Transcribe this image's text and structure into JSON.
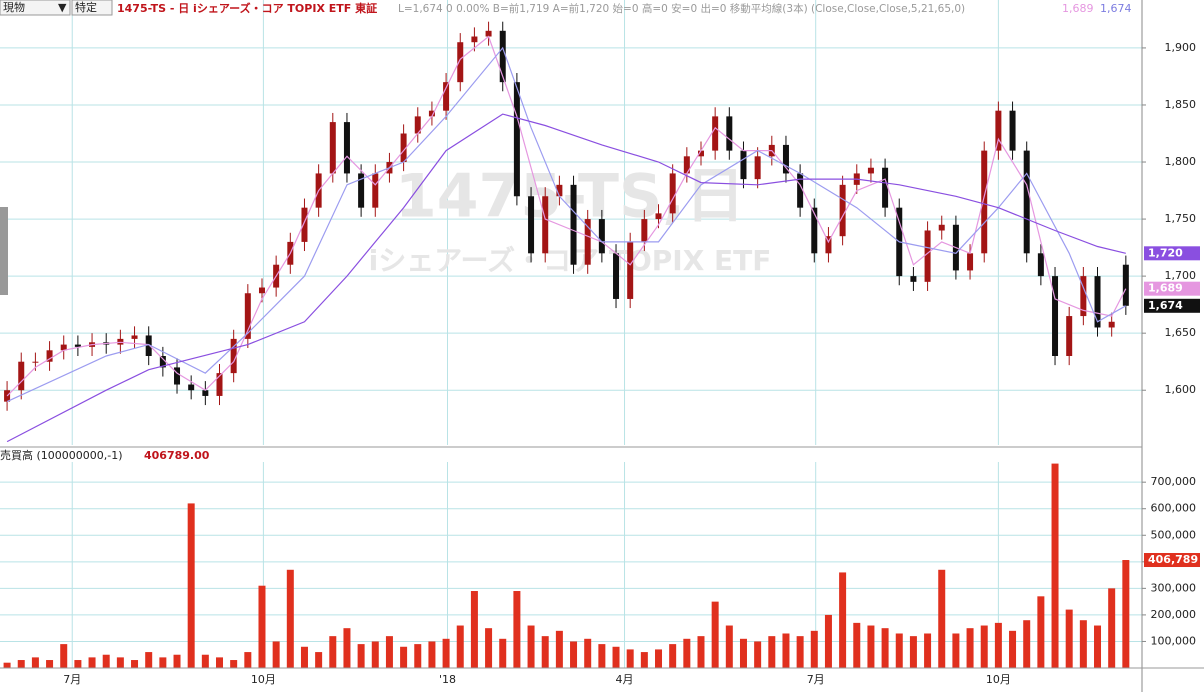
{
  "toolbar": {
    "market": "現物",
    "account": "特定"
  },
  "chart_data": [
    {
      "type": "candlestick",
      "title": "1475-TS - 日 iシェアーズ・コア TOPIX ETF 東証",
      "info": "L=1,674 0 0.00% B=前1,719 A=前1,720 始=0 高=0 安=0 出=0 移動平均線(3本) (Close,Close,Close,5,21,65,0)",
      "watermark": [
        "1475-TS,日",
        "iシェアーズ・コア TOPIX ETF"
      ],
      "open": [
        1590,
        1600,
        1625,
        1625,
        1635,
        1640,
        1638,
        1642,
        1640,
        1645,
        1648,
        1630,
        1620,
        1605,
        1600,
        1595,
        1615,
        1645,
        1685,
        1690,
        1710,
        1730,
        1760,
        1790,
        1835,
        1790,
        1760,
        1790,
        1800,
        1825,
        1840,
        1845,
        1870,
        1905,
        1910,
        1915,
        1870,
        1770,
        1720,
        1770,
        1780,
        1710,
        1750,
        1720,
        1680,
        1730,
        1750,
        1755,
        1790,
        1805,
        1810,
        1840,
        1810,
        1785,
        1805,
        1815,
        1790,
        1760,
        1720,
        1735,
        1780,
        1790,
        1795,
        1760,
        1700,
        1695,
        1740,
        1745,
        1705,
        1720,
        1810,
        1845,
        1810,
        1720,
        1700,
        1630,
        1665,
        1700,
        1655,
        1710
      ],
      "high": [
        1608,
        1633,
        1633,
        1643,
        1648,
        1648,
        1650,
        1650,
        1653,
        1656,
        1656,
        1638,
        1628,
        1613,
        1608,
        1623,
        1653,
        1693,
        1698,
        1718,
        1738,
        1768,
        1798,
        1843,
        1843,
        1798,
        1798,
        1808,
        1833,
        1848,
        1853,
        1878,
        1913,
        1918,
        1923,
        1923,
        1878,
        1778,
        1778,
        1788,
        1788,
        1758,
        1758,
        1728,
        1738,
        1758,
        1763,
        1798,
        1813,
        1818,
        1848,
        1848,
        1818,
        1813,
        1823,
        1823,
        1798,
        1768,
        1743,
        1788,
        1798,
        1803,
        1803,
        1768,
        1708,
        1748,
        1753,
        1753,
        1728,
        1818,
        1853,
        1853,
        1818,
        1728,
        1708,
        1673,
        1708,
        1708,
        1668,
        1718
      ],
      "low": [
        1582,
        1592,
        1617,
        1617,
        1627,
        1630,
        1630,
        1632,
        1632,
        1637,
        1622,
        1612,
        1597,
        1592,
        1587,
        1587,
        1607,
        1637,
        1677,
        1682,
        1702,
        1722,
        1752,
        1782,
        1782,
        1752,
        1752,
        1782,
        1792,
        1817,
        1832,
        1837,
        1862,
        1897,
        1902,
        1862,
        1762,
        1712,
        1712,
        1762,
        1702,
        1702,
        1712,
        1672,
        1672,
        1722,
        1742,
        1747,
        1782,
        1797,
        1802,
        1802,
        1777,
        1777,
        1797,
        1782,
        1752,
        1712,
        1712,
        1727,
        1772,
        1782,
        1752,
        1692,
        1687,
        1687,
        1732,
        1697,
        1697,
        1712,
        1802,
        1802,
        1712,
        1692,
        1622,
        1622,
        1657,
        1647,
        1647,
        1666
      ],
      "close": [
        1600,
        1625,
        1625,
        1635,
        1640,
        1638,
        1642,
        1640,
        1645,
        1648,
        1630,
        1620,
        1605,
        1600,
        1595,
        1615,
        1645,
        1685,
        1690,
        1710,
        1730,
        1760,
        1790,
        1835,
        1790,
        1760,
        1790,
        1800,
        1825,
        1840,
        1845,
        1870,
        1905,
        1910,
        1915,
        1870,
        1770,
        1720,
        1770,
        1780,
        1710,
        1750,
        1720,
        1680,
        1730,
        1750,
        1755,
        1790,
        1805,
        1810,
        1840,
        1810,
        1785,
        1805,
        1815,
        1790,
        1760,
        1720,
        1735,
        1780,
        1790,
        1795,
        1760,
        1700,
        1695,
        1740,
        1745,
        1705,
        1720,
        1810,
        1845,
        1810,
        1720,
        1700,
        1630,
        1665,
        1700,
        1655,
        1660,
        1674
      ],
      "close_label": {
        "value": 1674,
        "label": "1,674"
      },
      "up_color": "#a31515",
      "down_color": "#111111",
      "lines": [
        {
          "color": "#e597e0",
          "last": {
            "value": 1689,
            "label": "1,689"
          },
          "x": [
            0,
            2,
            4,
            6,
            8,
            10,
            12,
            14,
            16,
            18,
            20,
            22,
            24,
            26,
            28,
            30,
            32,
            34,
            36,
            38,
            40,
            42,
            44,
            46,
            48,
            50,
            52,
            54,
            56,
            58,
            60,
            62,
            64,
            66,
            68,
            70,
            72,
            74,
            76,
            78,
            79
          ],
          "values": [
            1595,
            1620,
            1635,
            1640,
            1642,
            1640,
            1615,
            1600,
            1625,
            1680,
            1720,
            1775,
            1805,
            1780,
            1810,
            1840,
            1890,
            1910,
            1840,
            1750,
            1740,
            1730,
            1710,
            1745,
            1790,
            1830,
            1810,
            1810,
            1780,
            1730,
            1775,
            1785,
            1710,
            1730,
            1720,
            1820,
            1780,
            1680,
            1670,
            1665,
            1689
          ]
        },
        {
          "color": "#9c9cf0",
          "last": {
            "value": 1674,
            "label": "1,674"
          },
          "x": [
            0,
            7,
            10,
            14,
            17,
            21,
            24,
            28,
            31,
            35,
            37,
            39,
            42,
            46,
            49,
            53,
            56,
            60,
            63,
            67,
            70,
            72,
            75,
            77,
            79
          ],
          "values": [
            1590,
            1630,
            1640,
            1615,
            1650,
            1700,
            1780,
            1800,
            1840,
            1900,
            1830,
            1770,
            1730,
            1730,
            1780,
            1810,
            1790,
            1760,
            1730,
            1720,
            1760,
            1790,
            1720,
            1660,
            1674
          ]
        },
        {
          "color": "#8a4fe0",
          "last": {
            "value": 1720,
            "label": "1,720"
          },
          "x": [
            0,
            7,
            10,
            17,
            21,
            24,
            28,
            31,
            35,
            38,
            42,
            46,
            49,
            53,
            56,
            60,
            63,
            67,
            70,
            74,
            77,
            79
          ],
          "values": [
            1555,
            1600,
            1618,
            1640,
            1660,
            1700,
            1760,
            1810,
            1842,
            1832,
            1815,
            1800,
            1782,
            1780,
            1785,
            1785,
            1780,
            1770,
            1760,
            1740,
            1726,
            1720
          ]
        }
      ],
      "xlim": [
        -0.5,
        80
      ],
      "ylim": [
        1552,
        1942
      ],
      "yticks": [
        {
          "value": 1600,
          "label": "1,600"
        },
        {
          "value": 1650,
          "label": "1,650"
        },
        {
          "value": 1700,
          "label": "1,700"
        },
        {
          "value": 1750,
          "label": "1,750"
        },
        {
          "value": 1800,
          "label": "1,800"
        },
        {
          "value": 1850,
          "label": "1,850"
        },
        {
          "value": 1900,
          "label": "1,900"
        }
      ],
      "grid": true
    },
    {
      "type": "bar",
      "title": "売買高 (100000000,-1)",
      "current": {
        "value": 406789,
        "label": "406,789",
        "header_label": "406789.00"
      },
      "color": "#e0301e",
      "values": [
        20000,
        30000,
        40000,
        30000,
        90000,
        30000,
        40000,
        50000,
        40000,
        30000,
        60000,
        40000,
        50000,
        620000,
        50000,
        40000,
        30000,
        60000,
        310000,
        100000,
        370000,
        80000,
        60000,
        120000,
        150000,
        90000,
        100000,
        120000,
        80000,
        90000,
        100000,
        110000,
        160000,
        290000,
        150000,
        110000,
        290000,
        160000,
        120000,
        140000,
        100000,
        110000,
        90000,
        80000,
        70000,
        60000,
        70000,
        90000,
        110000,
        120000,
        250000,
        160000,
        110000,
        100000,
        120000,
        130000,
        120000,
        140000,
        200000,
        360000,
        170000,
        160000,
        150000,
        130000,
        120000,
        130000,
        370000,
        130000,
        150000,
        160000,
        170000,
        140000,
        180000,
        270000,
        770000,
        220000,
        180000,
        160000,
        300000,
        406789
      ],
      "xlim": [
        -0.5,
        80
      ],
      "xticks": [
        {
          "value": 4.6,
          "label": "7月"
        },
        {
          "value": 18.1,
          "label": "10月"
        },
        {
          "value": 31.1,
          "label": "'18"
        },
        {
          "value": 43.6,
          "label": "4月"
        },
        {
          "value": 57.1,
          "label": "7月"
        },
        {
          "value": 70.0,
          "label": "10月"
        }
      ],
      "ylim": [
        0,
        776000
      ],
      "yticks": [
        {
          "value": 100000,
          "label": "100,000"
        },
        {
          "value": 200000,
          "label": "200,000"
        },
        {
          "value": 300000,
          "label": "300,000"
        },
        {
          "value": 400000,
          "label": "400,000"
        },
        {
          "value": 500000,
          "label": "500,000"
        },
        {
          "value": 600000,
          "label": "600,000"
        },
        {
          "value": 700000,
          "label": "700,000"
        }
      ],
      "grid": true
    }
  ]
}
